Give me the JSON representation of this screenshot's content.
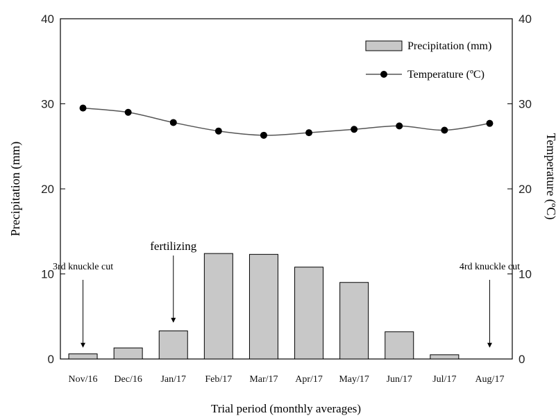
{
  "chart_data": {
    "type": "bar",
    "categories": [
      "Nov/16",
      "Dec/16",
      "Jan/17",
      "Feb/17",
      "Mar/17",
      "Apr/17",
      "May/17",
      "Jun/17",
      "Jul/17",
      "Aug/17"
    ],
    "series": [
      {
        "name": "Precipitation (mm)",
        "kind": "bar",
        "axis": "left",
        "values": [
          0.6,
          1.3,
          3.3,
          12.4,
          12.3,
          10.8,
          9.0,
          3.2,
          0.5,
          0.0
        ]
      },
      {
        "name": "Temperature (ºC)",
        "kind": "line",
        "axis": "right",
        "values": [
          29.5,
          29.0,
          27.8,
          26.8,
          26.3,
          26.6,
          27.0,
          27.4,
          26.9,
          27.7
        ]
      }
    ],
    "xlabel": "Trial period (monthly averages)",
    "ylabel": "Precipitation (mm)",
    "ylabel_right": "Temperature (ºC)",
    "ylim": [
      0,
      40
    ],
    "ylim_right": [
      0,
      40
    ],
    "yticks": [
      0,
      10,
      20,
      30,
      40
    ],
    "legend_position": "top-right",
    "grid": false,
    "annotations": [
      {
        "text": "3rd knuckle cut",
        "category": "Nov/16"
      },
      {
        "text": "fertilizing",
        "category": "Jan/17"
      },
      {
        "text": "4rd knuckle cut",
        "category": "Aug/17"
      }
    ],
    "colors": {
      "bar_fill": "#c8c8c8",
      "bar_stroke": "#000000",
      "line": "#555555",
      "marker": "#000000"
    }
  }
}
